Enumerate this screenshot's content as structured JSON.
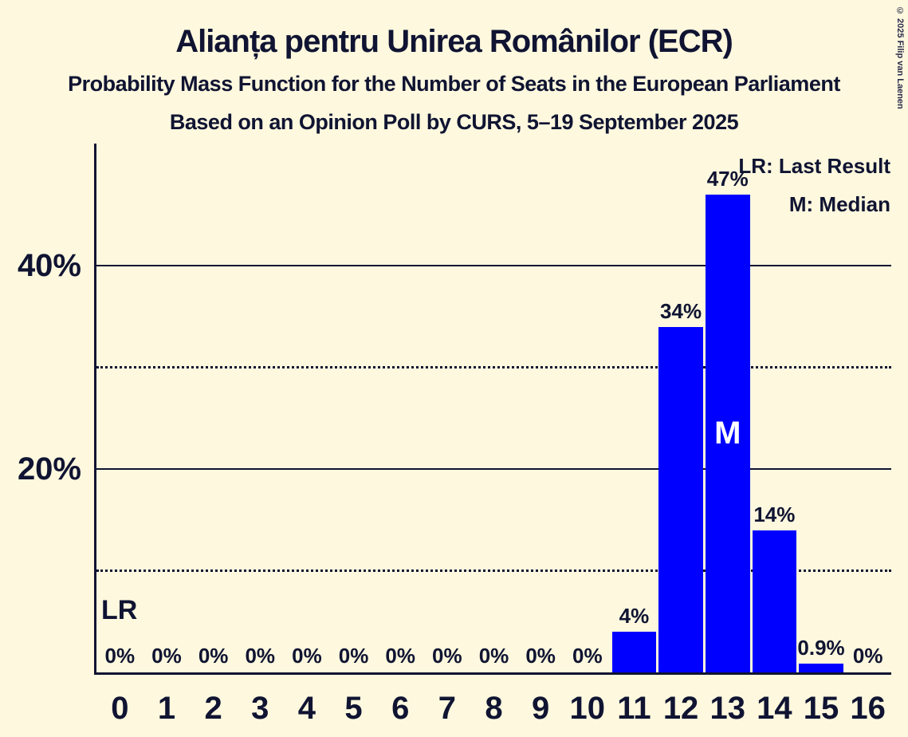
{
  "title": "Alianța pentru Unirea Românilor (ECR)",
  "subtitle1": "Probability Mass Function for the Number of Seats in the European Parliament",
  "subtitle2": "Based on an Opinion Poll by CURS, 5–19 September 2025",
  "copyright": "© 2025 Filip van Laenen",
  "legend": {
    "lr": "LR: Last Result",
    "m": "M: Median"
  },
  "colors": {
    "background": "#FDF8DE",
    "bar": "#0000FF",
    "text": "#101432",
    "median_text": "#FFFFFF"
  },
  "chart_data": {
    "type": "bar",
    "title": "Alianța pentru Unirea Românilor (ECR)",
    "categories": [
      "0",
      "1",
      "2",
      "3",
      "4",
      "5",
      "6",
      "7",
      "8",
      "9",
      "10",
      "11",
      "12",
      "13",
      "14",
      "15",
      "16"
    ],
    "values": [
      0,
      0,
      0,
      0,
      0,
      0,
      0,
      0,
      0,
      0,
      0,
      4,
      34,
      47,
      14,
      0.9,
      0
    ],
    "value_labels": [
      "0%",
      "0%",
      "0%",
      "0%",
      "0%",
      "0%",
      "0%",
      "0%",
      "0%",
      "0%",
      "0%",
      "4%",
      "34%",
      "47%",
      "14%",
      "0.9%",
      "0%"
    ],
    "ylim": [
      0,
      52
    ],
    "yticks": [
      {
        "value": 10,
        "label": "",
        "style": "dotted"
      },
      {
        "value": 20,
        "label": "20%",
        "style": "solid"
      },
      {
        "value": 30,
        "label": "",
        "style": "dotted"
      },
      {
        "value": 40,
        "label": "40%",
        "style": "solid"
      }
    ],
    "median": {
      "category": "13",
      "label": "M"
    },
    "last_result": {
      "category": "0",
      "label": "LR"
    },
    "legend_position": "top-right",
    "grid": "horizontal-only"
  }
}
